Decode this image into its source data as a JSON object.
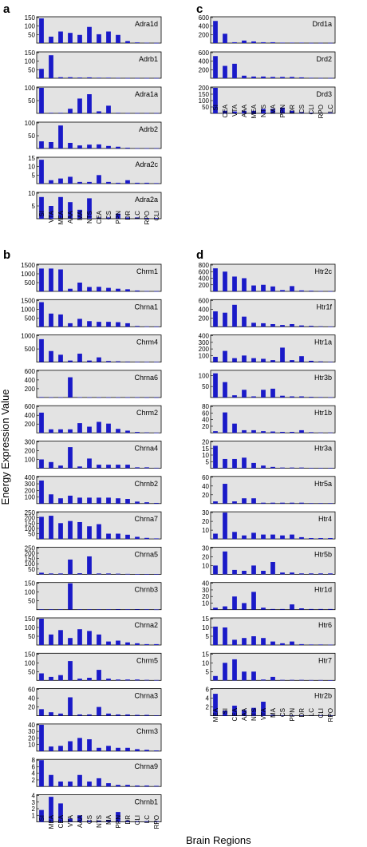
{
  "colors": {
    "bar": "#1a1ac8",
    "panel_bg": "#e3e3e3",
    "frame": "#000000"
  },
  "ylabel": "Energy Expression Value",
  "xlabel": "Brain Regions",
  "chart_data": [
    {
      "panel": "a",
      "type": "bar",
      "categories": [
        "SI",
        "VTA",
        "MEA",
        "AAA",
        "MA",
        "NTS",
        "CEA",
        "CS",
        "PPN",
        "DR",
        "LC",
        "RPO",
        "CLI"
      ],
      "subplots": [
        {
          "name": "Adra1d",
          "ylim": [
            0,
            150
          ],
          "yticks": [
            50,
            100,
            150
          ],
          "values": [
            145,
            38,
            68,
            60,
            48,
            95,
            52,
            68,
            48,
            12,
            4,
            2,
            1
          ]
        },
        {
          "name": "Adrb1",
          "ylim": [
            0,
            150
          ],
          "yticks": [
            50,
            100,
            150
          ],
          "values": [
            55,
            135,
            6,
            6,
            4,
            5,
            3,
            3,
            2,
            1,
            1,
            1,
            1
          ]
        },
        {
          "name": "Adra1a",
          "ylim": [
            0,
            100
          ],
          "yticks": [
            50,
            100
          ],
          "values": [
            100,
            2,
            2,
            18,
            58,
            75,
            8,
            30,
            2,
            1,
            1,
            1,
            1
          ]
        },
        {
          "name": "Adrb2",
          "ylim": [
            0,
            100
          ],
          "yticks": [
            50,
            100
          ],
          "values": [
            28,
            25,
            90,
            22,
            12,
            15,
            16,
            10,
            7,
            3,
            1,
            1,
            1
          ]
        },
        {
          "name": "Adra2c",
          "ylim": [
            0,
            15
          ],
          "yticks": [
            5,
            10,
            15
          ],
          "values": [
            14,
            2,
            3,
            4,
            1,
            1,
            5,
            1,
            0.5,
            2,
            0.5,
            0.5,
            0.3
          ]
        },
        {
          "name": "Adra2a",
          "ylim": [
            0,
            10
          ],
          "yticks": [
            5,
            10
          ],
          "values": [
            8.5,
            5,
            8.5,
            6.5,
            3.5,
            8,
            0.5,
            0.5,
            2,
            0.5,
            0.5,
            0.3,
            0.3
          ]
        }
      ]
    },
    {
      "panel": "b",
      "type": "bar",
      "categories": [
        "SI",
        "MEA",
        "CEA",
        "VTA",
        "AAA",
        "CS",
        "NTS",
        "MA",
        "PPN",
        "DR",
        "CLI",
        "LC",
        "RPO"
      ],
      "subplots": [
        {
          "name": "Chrm1",
          "ylim": [
            0,
            1500
          ],
          "yticks": [
            500,
            1000,
            1500
          ],
          "values": [
            1300,
            1300,
            1250,
            150,
            500,
            250,
            260,
            200,
            150,
            120,
            50,
            20,
            10
          ]
        },
        {
          "name": "Chrna1",
          "ylim": [
            0,
            1500
          ],
          "yticks": [
            500,
            1000,
            1500
          ],
          "values": [
            1400,
            750,
            700,
            200,
            450,
            320,
            280,
            280,
            260,
            200,
            40,
            20,
            10
          ]
        },
        {
          "name": "Chrm4",
          "ylim": [
            0,
            1000
          ],
          "yticks": [
            500,
            1000
          ],
          "values": [
            870,
            420,
            280,
            60,
            320,
            60,
            180,
            40,
            30,
            20,
            10,
            5,
            5
          ]
        },
        {
          "name": "Chrna6",
          "ylim": [
            0,
            600
          ],
          "yticks": [
            200,
            400,
            600
          ],
          "values": [
            10,
            5,
            5,
            460,
            8,
            5,
            5,
            5,
            5,
            5,
            5,
            3,
            3
          ]
        },
        {
          "name": "Chrm2",
          "ylim": [
            0,
            600
          ],
          "yticks": [
            200,
            400,
            600
          ],
          "values": [
            460,
            80,
            80,
            80,
            220,
            140,
            250,
            210,
            90,
            50,
            20,
            10,
            5
          ]
        },
        {
          "name": "Chrna4",
          "ylim": [
            0,
            300
          ],
          "yticks": [
            100,
            200,
            300
          ],
          "values": [
            100,
            70,
            30,
            240,
            20,
            110,
            40,
            40,
            40,
            40,
            10,
            10,
            5
          ]
        },
        {
          "name": "Chrnb2",
          "ylim": [
            0,
            400
          ],
          "yticks": [
            100,
            200,
            300,
            400
          ],
          "values": [
            350,
            140,
            80,
            120,
            90,
            90,
            90,
            90,
            80,
            70,
            30,
            20,
            10
          ]
        },
        {
          "name": "Chrna7",
          "ylim": [
            0,
            250
          ],
          "yticks": [
            50,
            100,
            150,
            200,
            250
          ],
          "values": [
            210,
            220,
            150,
            170,
            160,
            120,
            140,
            50,
            50,
            40,
            20,
            10,
            5
          ]
        },
        {
          "name": "Chrna5",
          "ylim": [
            0,
            250
          ],
          "yticks": [
            50,
            100,
            150,
            200,
            250
          ],
          "values": [
            15,
            8,
            8,
            140,
            10,
            170,
            8,
            8,
            6,
            4,
            3,
            2,
            2
          ]
        },
        {
          "name": "Chrnb3",
          "ylim": [
            0,
            150
          ],
          "yticks": [
            50,
            100,
            150
          ],
          "values": [
            2,
            2,
            2,
            150,
            2,
            2,
            2,
            2,
            3,
            2,
            3,
            2,
            1
          ]
        },
        {
          "name": "Chrna2",
          "ylim": [
            0,
            150
          ],
          "yticks": [
            50,
            100,
            150
          ],
          "values": [
            150,
            60,
            85,
            40,
            90,
            80,
            60,
            20,
            25,
            15,
            10,
            5,
            5
          ]
        },
        {
          "name": "Chrm5",
          "ylim": [
            0,
            150
          ],
          "yticks": [
            50,
            100,
            150
          ],
          "values": [
            40,
            20,
            30,
            110,
            10,
            15,
            60,
            10,
            5,
            5,
            5,
            3,
            2
          ]
        },
        {
          "name": "Chrna3",
          "ylim": [
            0,
            60
          ],
          "yticks": [
            20,
            40,
            60
          ],
          "values": [
            15,
            8,
            5,
            42,
            3,
            3,
            20,
            5,
            3,
            3,
            2,
            2,
            1
          ]
        },
        {
          "name": "Chrm3",
          "ylim": [
            0,
            40
          ],
          "yticks": [
            10,
            20,
            30,
            40
          ],
          "values": [
            40,
            7,
            8,
            15,
            20,
            18,
            5,
            8,
            5,
            5,
            3,
            2,
            1
          ]
        },
        {
          "name": "Chrna9",
          "ylim": [
            0,
            8
          ],
          "yticks": [
            2,
            4,
            6,
            8
          ],
          "values": [
            8,
            3.5,
            1.5,
            1.5,
            3.5,
            1.5,
            2.5,
            1,
            0.5,
            0.5,
            0.3,
            0.3,
            0.2
          ]
        },
        {
          "name": "Chrnb1",
          "ylim": [
            0,
            4
          ],
          "yticks": [
            1,
            2,
            3,
            4
          ],
          "values": [
            1.8,
            3.8,
            2.8,
            0.5,
            1,
            0.2,
            0.2,
            0.3,
            1.5,
            0.2,
            0.1,
            0.1,
            0.1
          ]
        }
      ]
    },
    {
      "panel": "c",
      "type": "bar",
      "categories": [
        "SI",
        "CEA",
        "VTA",
        "AAA",
        "MEA",
        "NTS",
        "MA",
        "PPN",
        "DR",
        "CS",
        "CLI",
        "RPO",
        "LC"
      ],
      "subplots": [
        {
          "name": "Drd1a",
          "ylim": [
            0,
            600
          ],
          "yticks": [
            200,
            400,
            600
          ],
          "values": [
            520,
            220,
            20,
            60,
            40,
            20,
            20,
            10,
            10,
            10,
            5,
            5,
            5
          ]
        },
        {
          "name": "Drd2",
          "ylim": [
            0,
            600
          ],
          "yticks": [
            200,
            400,
            600
          ],
          "values": [
            520,
            290,
            340,
            60,
            40,
            40,
            30,
            30,
            30,
            20,
            10,
            5,
            5
          ]
        },
        {
          "name": "Drd3",
          "ylim": [
            0,
            200
          ],
          "yticks": [
            50,
            100,
            150,
            200
          ],
          "values": [
            200,
            20,
            15,
            20,
            20,
            35,
            35,
            45,
            20,
            10,
            5,
            5,
            5
          ]
        }
      ]
    },
    {
      "panel": "d",
      "type": "bar",
      "categories": [
        "MEA",
        "SI",
        "CEA",
        "AAA",
        "NTS",
        "VTA",
        "MA",
        "CS",
        "PPN",
        "DR",
        "LC",
        "CLI",
        "RPO"
      ],
      "subplots": [
        {
          "name": "Htr2c",
          "ylim": [
            0,
            800
          ],
          "yticks": [
            200,
            400,
            600,
            800
          ],
          "values": [
            700,
            600,
            450,
            400,
            180,
            200,
            150,
            40,
            160,
            30,
            20,
            10,
            5
          ]
        },
        {
          "name": "Htr1f",
          "ylim": [
            0,
            600
          ],
          "yticks": [
            200,
            400,
            600
          ],
          "values": [
            350,
            320,
            500,
            230,
            90,
            80,
            60,
            40,
            60,
            30,
            20,
            10,
            5
          ]
        },
        {
          "name": "Htr1a",
          "ylim": [
            0,
            400
          ],
          "yticks": [
            100,
            200,
            300,
            400
          ],
          "values": [
            80,
            170,
            60,
            100,
            60,
            50,
            30,
            220,
            30,
            90,
            20,
            10,
            5
          ]
        },
        {
          "name": "Htr3b",
          "ylim": [
            0,
            120
          ],
          "yticks": [
            50,
            100
          ],
          "values": [
            110,
            70,
            10,
            35,
            5,
            35,
            40,
            8,
            5,
            5,
            3,
            2,
            1
          ]
        },
        {
          "name": "Htr1b",
          "ylim": [
            0,
            80
          ],
          "yticks": [
            20,
            40,
            60,
            80
          ],
          "values": [
            5,
            62,
            28,
            8,
            8,
            5,
            4,
            3,
            3,
            8,
            2,
            1,
            1
          ]
        },
        {
          "name": "Htr3a",
          "ylim": [
            0,
            20
          ],
          "yticks": [
            5,
            10,
            15,
            20
          ],
          "values": [
            17,
            7,
            7,
            8,
            4,
            2,
            1,
            0.5,
            0.5,
            0.5,
            0.3,
            0.3,
            0.2
          ]
        },
        {
          "name": "Htr5a",
          "ylim": [
            0,
            60
          ],
          "yticks": [
            20,
            40,
            60
          ],
          "values": [
            5,
            45,
            5,
            12,
            12,
            2,
            2,
            2,
            2,
            2,
            1,
            1,
            1
          ]
        },
        {
          "name": "Htr4",
          "ylim": [
            0,
            30
          ],
          "yticks": [
            10,
            20,
            30
          ],
          "values": [
            6,
            30,
            8,
            4,
            7,
            5,
            5,
            4,
            5,
            2,
            1,
            1,
            1
          ]
        },
        {
          "name": "Htr5b",
          "ylim": [
            0,
            30
          ],
          "yticks": [
            10,
            20,
            30
          ],
          "values": [
            10,
            26,
            5,
            4,
            10,
            4,
            14,
            2,
            2,
            1,
            1,
            1,
            1
          ]
        },
        {
          "name": "Htr1d",
          "ylim": [
            0,
            40
          ],
          "yticks": [
            10,
            20,
            30,
            40
          ],
          "values": [
            3,
            5,
            20,
            10,
            27,
            3,
            1,
            1,
            8,
            2,
            1,
            1,
            1
          ]
        },
        {
          "name": "Htr6",
          "ylim": [
            0,
            15
          ],
          "yticks": [
            5,
            10,
            15
          ],
          "values": [
            10.5,
            10,
            3,
            4,
            5,
            4,
            2,
            1,
            2,
            0.5,
            0.3,
            0.3,
            0.2
          ]
        },
        {
          "name": "Htr7",
          "ylim": [
            0,
            15
          ],
          "yticks": [
            5,
            10,
            15
          ],
          "values": [
            2.5,
            10,
            12,
            5,
            5,
            0.5,
            2,
            0.3,
            0.3,
            0.3,
            0.2,
            0.2,
            0.1
          ]
        },
        {
          "name": "Htr2b",
          "ylim": [
            0,
            6
          ],
          "yticks": [
            2,
            4,
            6
          ],
          "values": [
            5,
            1.2,
            2.3,
            1.3,
            1.8,
            3.2,
            0.2,
            0.1,
            0.1,
            0.1,
            0.1,
            0.1,
            0.1
          ]
        }
      ]
    }
  ]
}
